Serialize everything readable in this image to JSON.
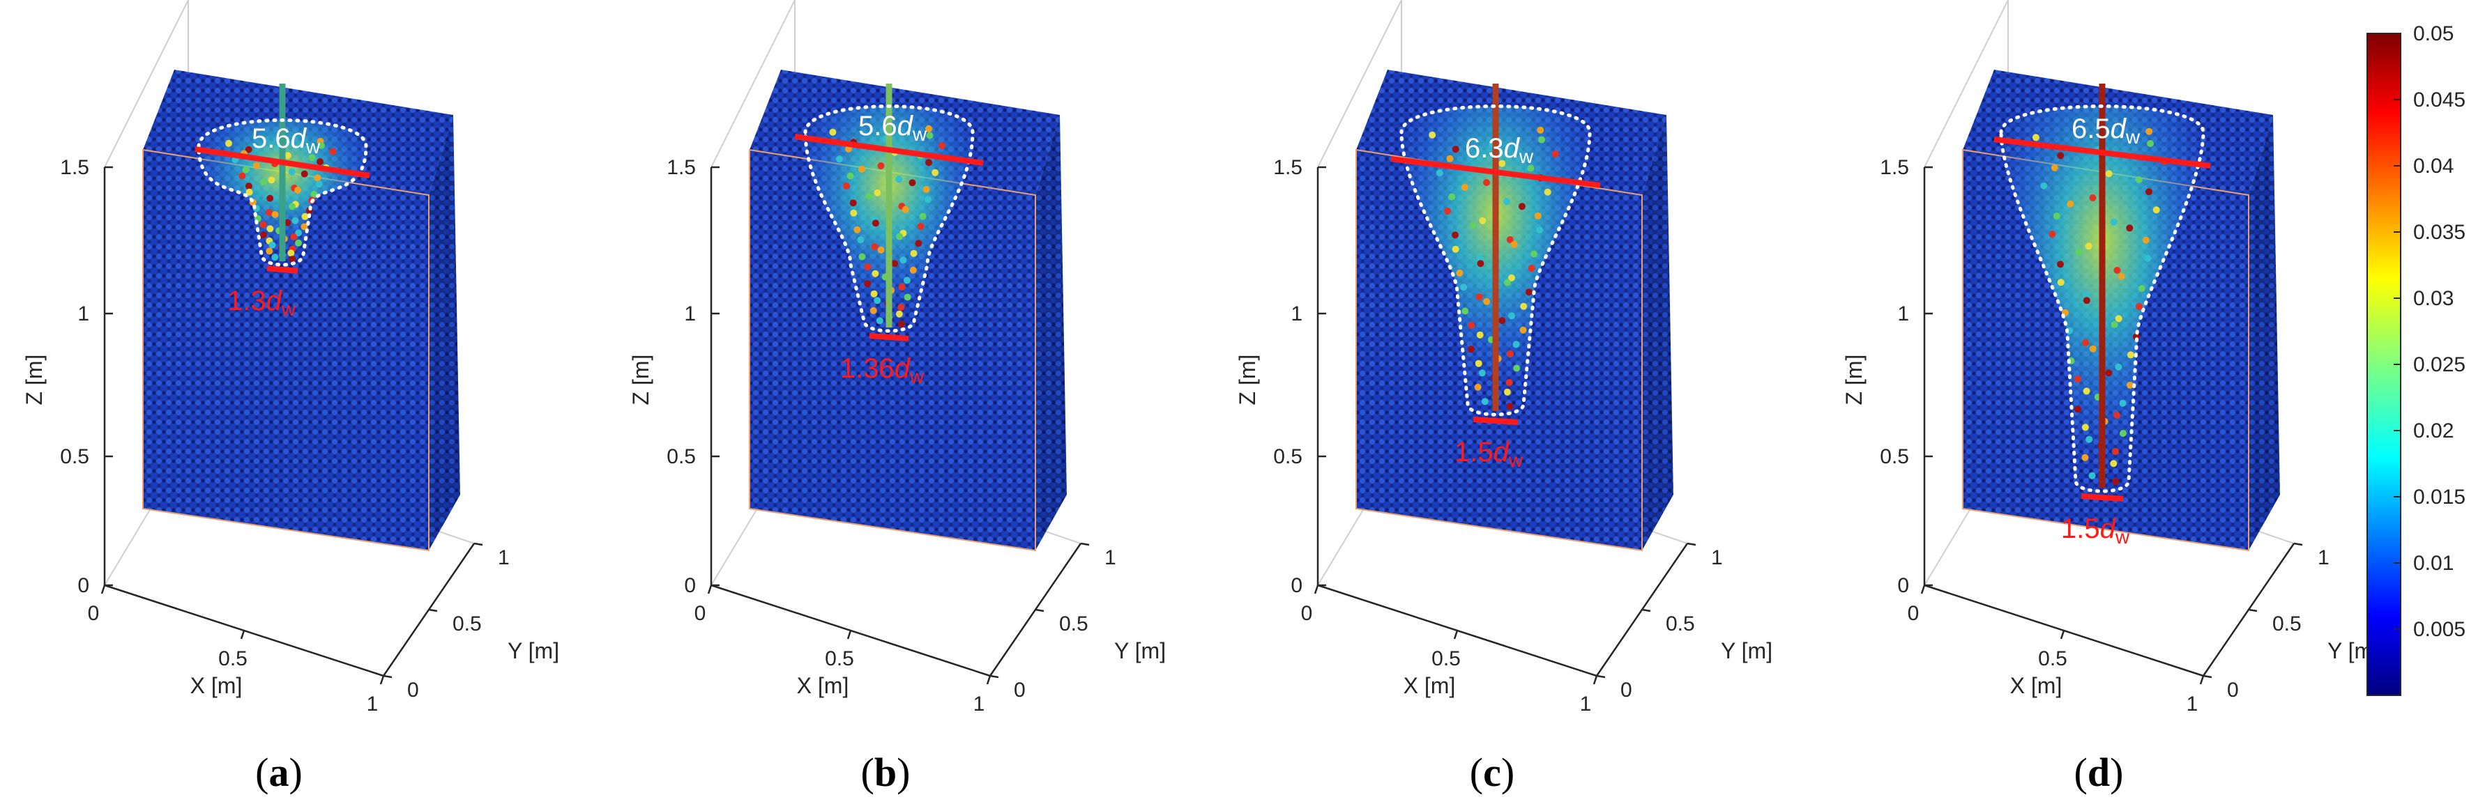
{
  "panels": [
    {
      "label_open": "(",
      "label_letter": "a",
      "label_close": ")",
      "top_annotation": {
        "number": "5.6",
        "symbol": "d",
        "subscript": "w"
      },
      "bottom_annotation": {
        "number": "1.3",
        "symbol": "d",
        "subscript": "w"
      },
      "values": {
        "top_width_dw": 5.6,
        "bottom_width_dw": 1.3
      }
    },
    {
      "label_open": "(",
      "label_letter": "b",
      "label_close": ")",
      "top_annotation": {
        "number": "5.6",
        "symbol": "d",
        "subscript": "w"
      },
      "bottom_annotation": {
        "number": "1.36",
        "symbol": "d",
        "subscript": "w"
      },
      "values": {
        "top_width_dw": 5.6,
        "bottom_width_dw": 1.36
      }
    },
    {
      "label_open": "(",
      "label_letter": "c",
      "label_close": ")",
      "top_annotation": {
        "number": "6.3",
        "symbol": "d",
        "subscript": "w"
      },
      "bottom_annotation": {
        "number": "1.5",
        "symbol": "d",
        "subscript": "w"
      },
      "values": {
        "top_width_dw": 6.3,
        "bottom_width_dw": 1.5
      }
    },
    {
      "label_open": "(",
      "label_letter": "d",
      "label_close": ")",
      "top_annotation": {
        "number": "6.5",
        "symbol": "d",
        "subscript": "w"
      },
      "bottom_annotation": {
        "number": "1.5",
        "symbol": "d",
        "subscript": "w"
      },
      "values": {
        "top_width_dw": 6.5,
        "bottom_width_dw": 1.5
      }
    }
  ],
  "axes": {
    "x_label": "X [m]",
    "y_label": "Y [m]",
    "z_label": "Z [m]",
    "x_ticks": [
      "0",
      "0.5",
      "1"
    ],
    "y_ticks": [
      "0",
      "0.5",
      "1"
    ],
    "z_ticks": [
      "0",
      "0.5",
      "1",
      "1.5"
    ]
  },
  "colorbar": {
    "colormap": "jet",
    "ticks": [
      "0.05",
      "0.045",
      "0.04",
      "0.035",
      "0.03",
      "0.025",
      "0.02",
      "0.015",
      "0.01",
      "0.005"
    ],
    "range": [
      0,
      0.05
    ]
  },
  "colors": {
    "background_particles": "#1a3fbf",
    "width_marker": "#ff1a1a",
    "contour": "#ffffff",
    "box_edge": "#e8a070"
  }
}
